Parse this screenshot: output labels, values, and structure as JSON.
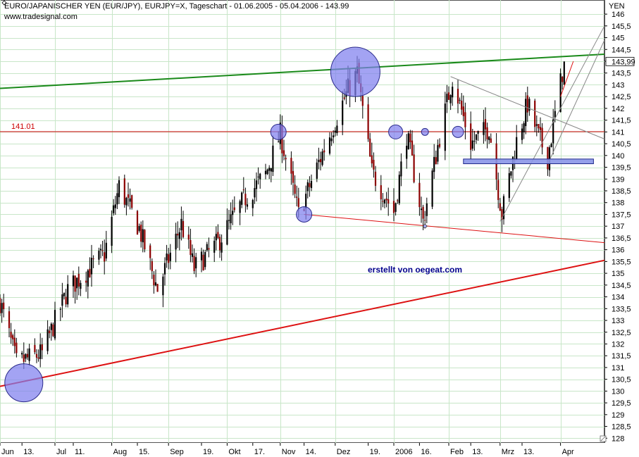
{
  "chart_data": {
    "type": "candlestick",
    "title": "EURO/JAPANISCHER YEN (EUR/JPY), EURJPY=X, Tageschart - 01.06.2005 - 05.04.2006 - 143.99",
    "source": "www.tradesignal.com",
    "annotation": "erstellt von oegeat.com",
    "y_unit": "YEN",
    "ylim": [
      127.8,
      146.6
    ],
    "y_ticks": [
      "146",
      "145,5",
      "145",
      "144,5",
      "144",
      "143,99",
      "143,5",
      "143",
      "142,5",
      "142",
      "141,5",
      "141",
      "140,5",
      "140",
      "139,5",
      "139",
      "138,5",
      "138",
      "137,5",
      "137",
      "136,5",
      "136",
      "135,5",
      "135",
      "134,5",
      "134",
      "133,5",
      "133",
      "132,5",
      "132",
      "131,5",
      "131",
      "130,5",
      "130",
      "129,5",
      "129",
      "128,5",
      "128"
    ],
    "x_tick_labels": [
      "Jun",
      "13.",
      "Jul",
      "11.",
      "Aug",
      "15.",
      "Sep",
      "19.",
      "Okt",
      "17.",
      "Nov",
      "14.",
      "Dez",
      "19.",
      "2006",
      "16.",
      "Feb",
      "13.",
      "Mrz",
      "13.",
      "Apr"
    ],
    "month_starts": [
      "2005-06-01",
      "2005-07-01",
      "2005-08-01",
      "2005-09-01",
      "2005-10-03",
      "2005-11-01",
      "2005-12-01",
      "2006-01-02",
      "2006-02-01",
      "2006-03-01",
      "2006-04-03"
    ],
    "horizontal_line": {
      "label": "141.01",
      "value": 141.01,
      "color": "#cc0000"
    },
    "last_close": 143.99,
    "keypoints": [
      {
        "date": "2005-06-01",
        "close": 133.8
      },
      {
        "date": "2005-06-10",
        "close": 131.2
      },
      {
        "date": "2005-06-24",
        "close": 131.6
      },
      {
        "date": "2005-07-08",
        "close": 134.3
      },
      {
        "date": "2005-07-28",
        "close": 135.8
      },
      {
        "date": "2005-08-05",
        "close": 138.7
      },
      {
        "date": "2005-08-16",
        "close": 136.9
      },
      {
        "date": "2005-08-26",
        "close": 134.3
      },
      {
        "date": "2005-09-08",
        "close": 137.1
      },
      {
        "date": "2005-09-15",
        "close": 135.2
      },
      {
        "date": "2005-09-28",
        "close": 136.3
      },
      {
        "date": "2005-10-12",
        "close": 138.1
      },
      {
        "date": "2005-10-24",
        "close": 139.2
      },
      {
        "date": "2005-11-01",
        "close": 140.9
      },
      {
        "date": "2005-11-11",
        "close": 137.5
      },
      {
        "date": "2005-11-25",
        "close": 140.3
      },
      {
        "date": "2005-12-08",
        "close": 142.8
      },
      {
        "date": "2005-12-13",
        "close": 143.5
      },
      {
        "date": "2005-12-21",
        "close": 139.3
      },
      {
        "date": "2006-01-02",
        "close": 137.6
      },
      {
        "date": "2006-01-09",
        "close": 140.9
      },
      {
        "date": "2006-01-18",
        "close": 137.2
      },
      {
        "date": "2006-01-27",
        "close": 140.8
      },
      {
        "date": "2006-02-03",
        "close": 143.3
      },
      {
        "date": "2006-02-13",
        "close": 140.5
      },
      {
        "date": "2006-02-23",
        "close": 141.2
      },
      {
        "date": "2006-03-02",
        "close": 137.5
      },
      {
        "date": "2006-03-10",
        "close": 140.6
      },
      {
        "date": "2006-03-16",
        "close": 142.2
      },
      {
        "date": "2006-03-22",
        "close": 140.8
      },
      {
        "date": "2006-03-27",
        "close": 139.9
      },
      {
        "date": "2006-04-05",
        "close": 143.99
      }
    ],
    "trendlines": [
      {
        "name": "resistance-green",
        "color": "#1a8a1a",
        "width": 2,
        "from": {
          "date": "2005-06-01",
          "value": 142.85
        },
        "to": {
          "date": "2006-04-27",
          "value": 144.3
        }
      },
      {
        "name": "support-red",
        "color": "#dd1111",
        "width": 2,
        "from": {
          "date": "2005-06-01",
          "value": 130.2
        },
        "to": {
          "date": "2006-04-27",
          "value": 135.55
        }
      },
      {
        "name": "lower-red-thin",
        "color": "#dd1111",
        "width": 1,
        "from": {
          "date": "2005-11-14",
          "value": 137.5
        },
        "to": {
          "date": "2006-04-27",
          "value": 136.3
        }
      },
      {
        "name": "upper-gray",
        "color": "#888888",
        "width": 1,
        "from": {
          "date": "2006-02-02",
          "value": 143.35
        },
        "to": {
          "date": "2006-04-27",
          "value": 140.7
        }
      },
      {
        "name": "channel-gray-1",
        "color": "#888888",
        "width": 1,
        "from": {
          "date": "2006-03-01",
          "value": 137.2
        },
        "to": {
          "date": "2006-04-27",
          "value": 145.5
        }
      },
      {
        "name": "channel-gray-2",
        "color": "#888888",
        "width": 1,
        "from": {
          "date": "2006-03-28",
          "value": 139.8
        },
        "to": {
          "date": "2006-04-27",
          "value": 144.9
        }
      },
      {
        "name": "short-red",
        "color": "#dd1111",
        "width": 1,
        "from": {
          "date": "2006-04-03",
          "value": 142.5
        },
        "to": {
          "date": "2006-04-10",
          "value": 144.0
        }
      }
    ],
    "circles": [
      {
        "date": "2005-06-14",
        "value": 130.35,
        "r": 27
      },
      {
        "date": "2005-12-12",
        "value": 143.55,
        "r": 35
      },
      {
        "date": "2005-10-31",
        "value": 141.0,
        "r": 11
      },
      {
        "date": "2005-11-14",
        "value": 137.5,
        "r": 11
      },
      {
        "date": "2006-01-03",
        "value": 141.0,
        "r": 10
      },
      {
        "date": "2006-02-06",
        "value": 141.0,
        "r": 8
      },
      {
        "date": "2006-01-19",
        "value": 141.0,
        "r": 5
      }
    ],
    "zone": {
      "from": "2006-02-09",
      "to": "2006-04-21",
      "low": 139.65,
      "high": 139.85
    },
    "colors": {
      "up": "#000000",
      "down": "#8b0000",
      "grid": "#c8e6c8",
      "circle_fill": "#8080ee",
      "circle_stroke": "#2a2a8a",
      "zone_fill": "#8a96e8"
    }
  }
}
